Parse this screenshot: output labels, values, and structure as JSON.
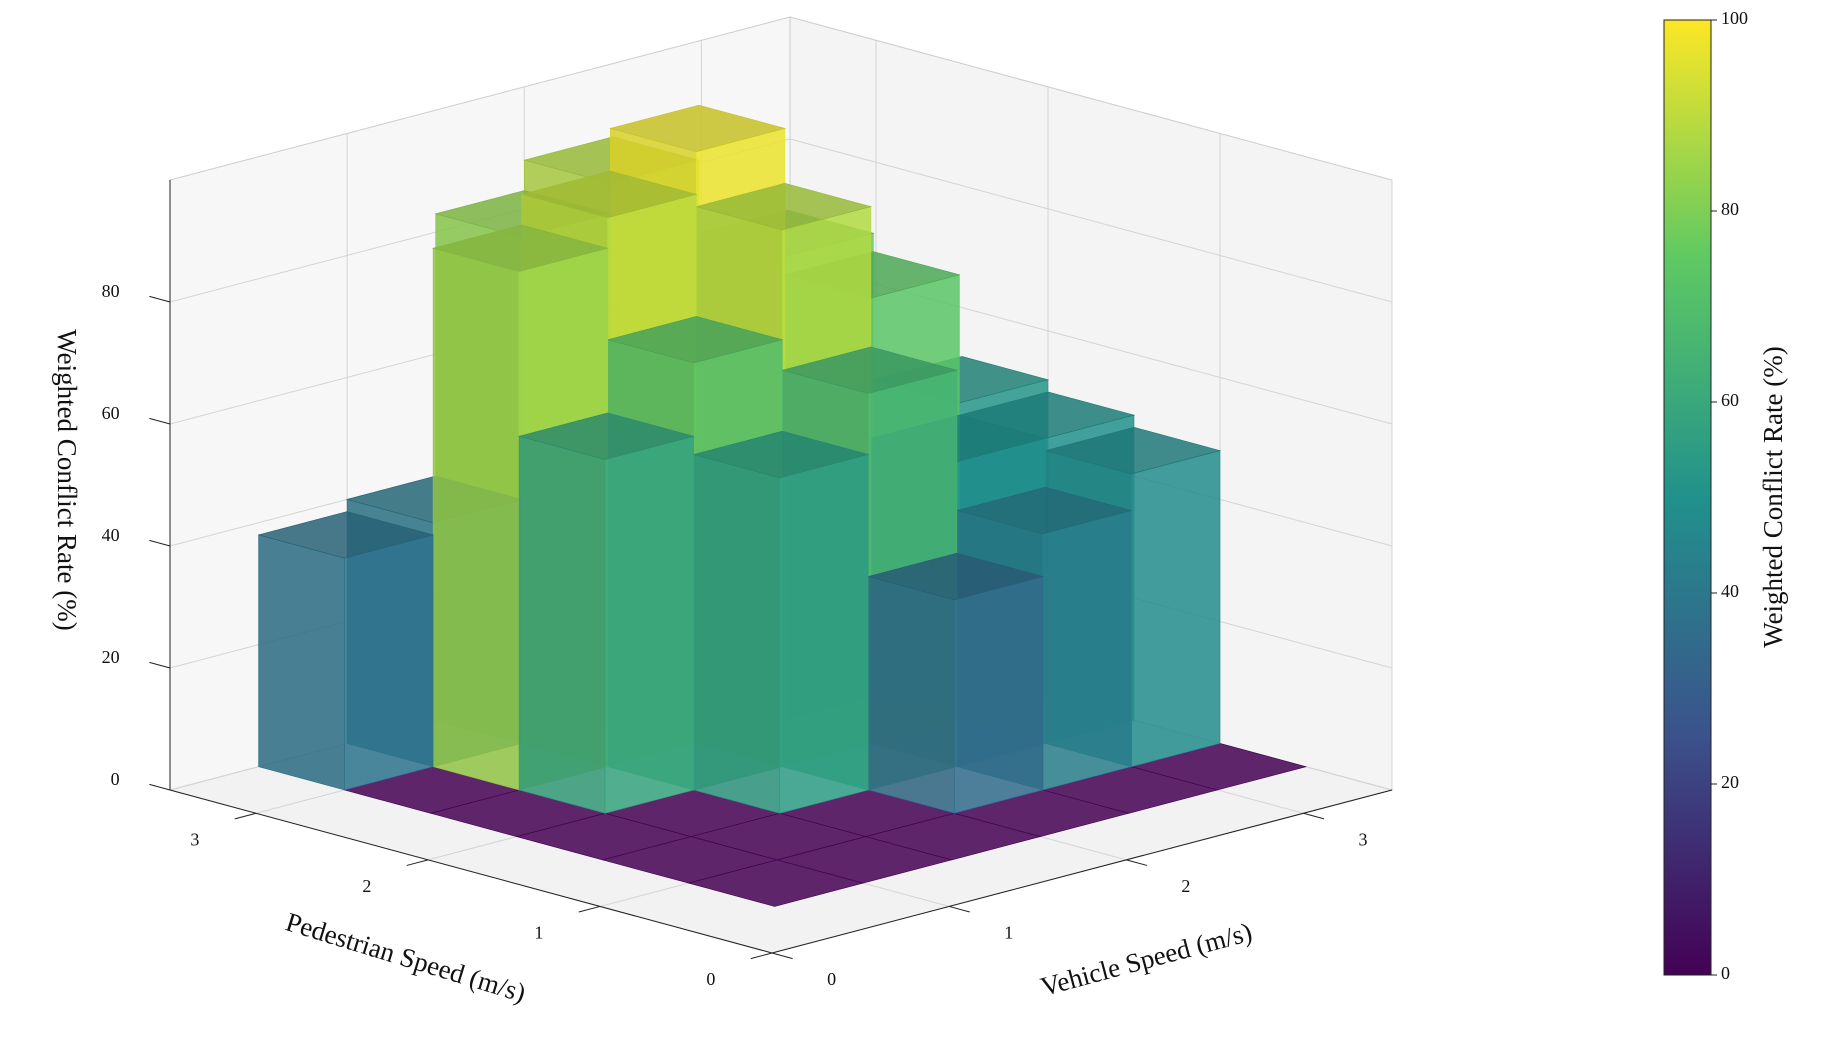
{
  "chart_data": {
    "type": "bar3d",
    "xlabel": "Vehicle Speed (m/s)",
    "ylabel": "Pedestrian Speed (m/s)",
    "zlabel": "Weighted Conflict Rate (%)",
    "x": [
      0.5,
      1.0,
      1.5,
      2.0,
      2.5,
      3.0
    ],
    "y": [
      0.5,
      1.0,
      1.5,
      2.0,
      2.5,
      3.0
    ],
    "values": [
      [
        0,
        0,
        0,
        0,
        0,
        0
      ],
      [
        0,
        0,
        0,
        35,
        42,
        48
      ],
      [
        0,
        0,
        55,
        65,
        50,
        50
      ],
      [
        0,
        58,
        70,
        88,
        73,
        52
      ],
      [
        0,
        85,
        90,
        97,
        76,
        0
      ],
      [
        38,
        40,
        83,
        88,
        0,
        0
      ]
    ],
    "xlim": [
      0,
      3.5
    ],
    "ylim": [
      0,
      3.5
    ],
    "zlim": [
      0,
      100
    ],
    "xticks": [
      0,
      1,
      2,
      3
    ],
    "yticks": [
      0,
      1,
      2,
      3
    ],
    "zticks": [
      0,
      20,
      40,
      60,
      80
    ],
    "grid": true,
    "colormap": "viridis",
    "colorbar": {
      "label": "Weighted Conflict Rate (%)",
      "lim": [
        0,
        100
      ],
      "ticks": [
        0,
        20,
        40,
        60,
        80,
        100
      ]
    }
  }
}
